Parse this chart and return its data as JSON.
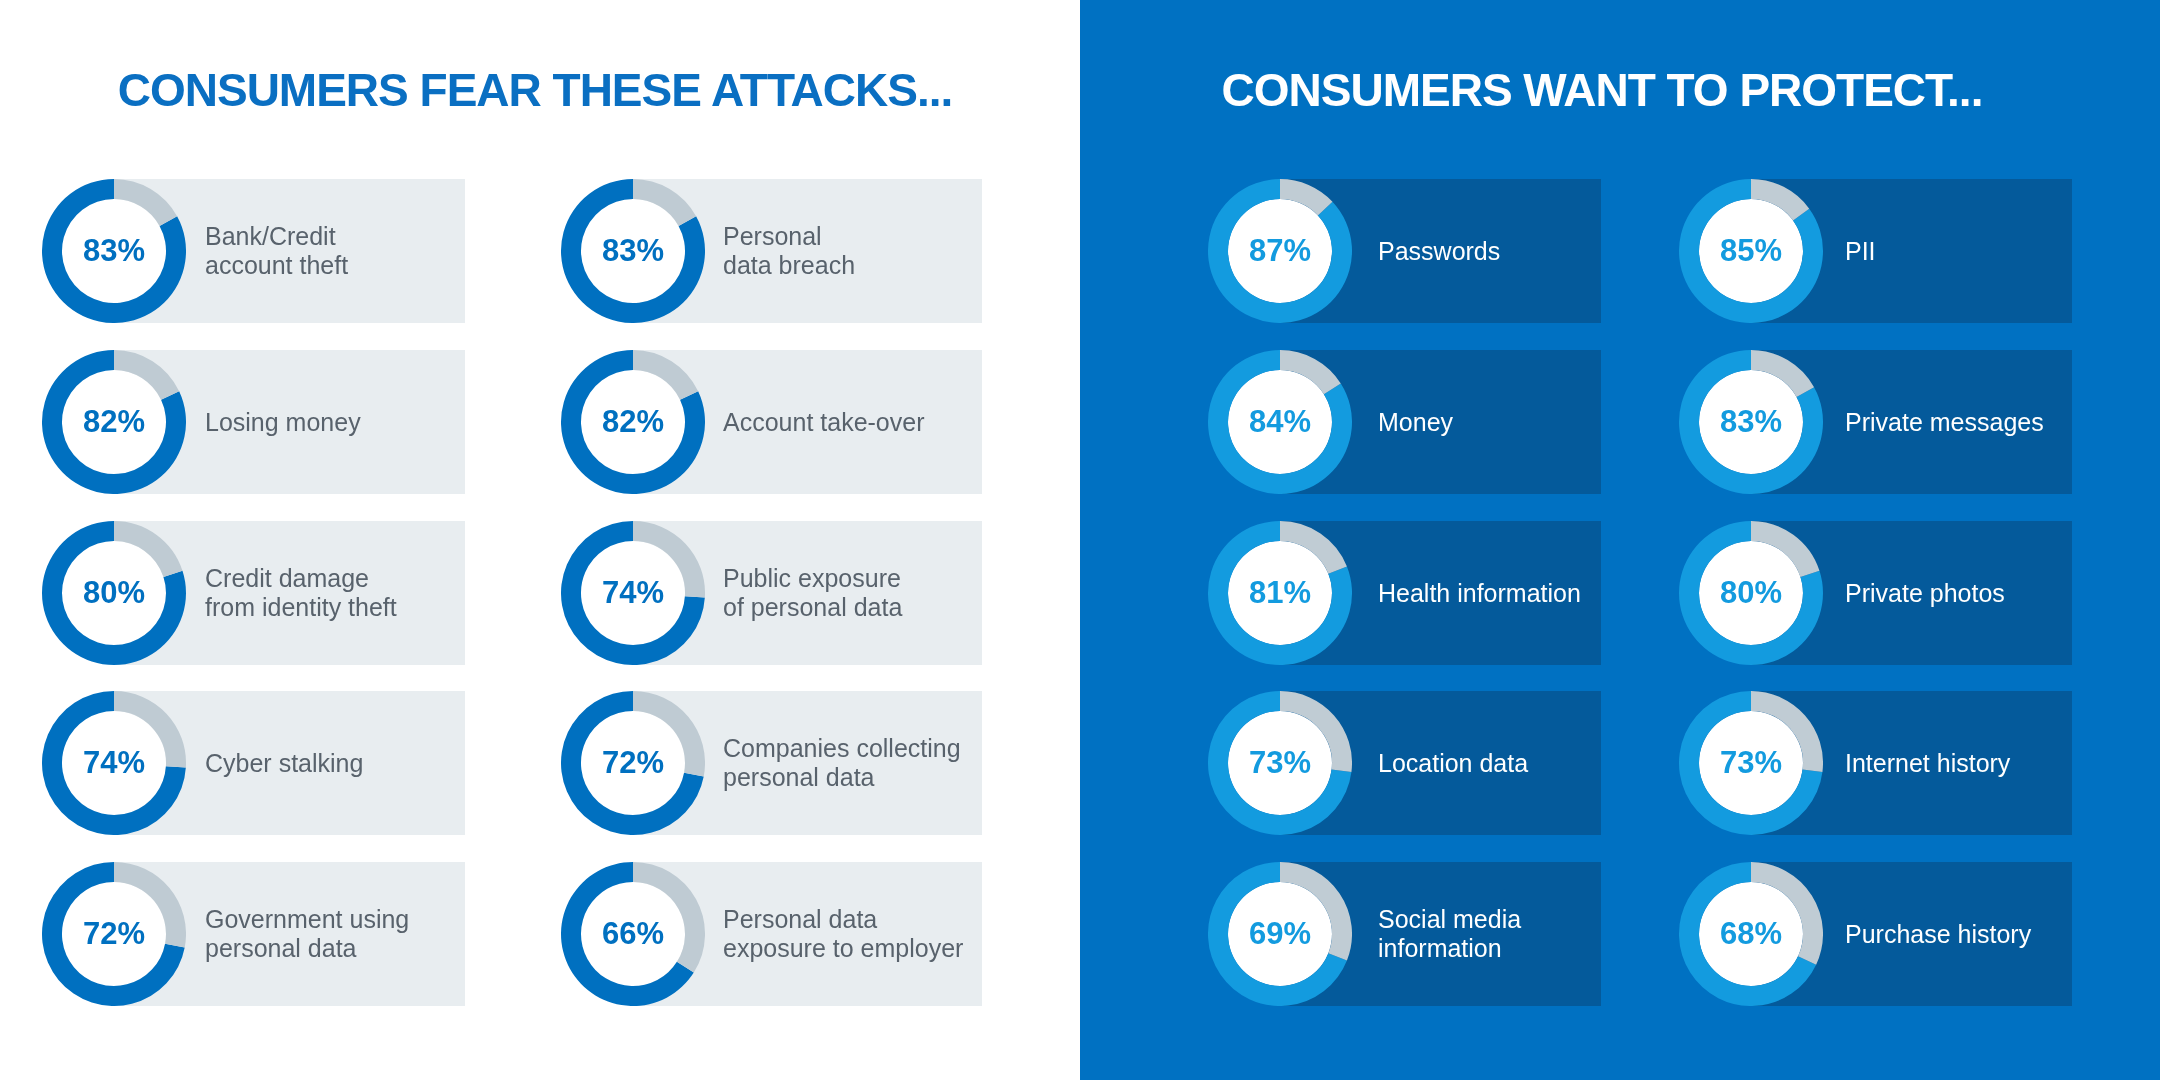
{
  "chart_data": [
    {
      "type": "other",
      "title": "CONSUMERS FEAR THESE ATTACKS..."
    },
    {
      "type": "donut",
      "title": "Bank/Credit\naccount theft",
      "categories": [
        null,
        null
      ],
      "values": [
        83,
        17
      ],
      "colors": [
        "#0070c0",
        "#bfcbd3"
      ],
      "value_labels": [
        "83%",
        null
      ]
    },
    {
      "type": "donut",
      "title": "Personal\ndata breach",
      "categories": [
        null,
        null
      ],
      "values": [
        83,
        17
      ],
      "colors": [
        "#0070c0",
        "#bfcbd3"
      ],
      "value_labels": [
        "83%",
        null
      ]
    },
    {
      "type": "donut",
      "title": "Losing money",
      "categories": [
        null,
        null
      ],
      "values": [
        82,
        18
      ],
      "colors": [
        "#0070c0",
        "#bfcbd3"
      ],
      "value_labels": [
        "82%",
        null
      ]
    },
    {
      "type": "donut",
      "title": "Account take-over",
      "categories": [
        null,
        null
      ],
      "values": [
        82,
        18
      ],
      "colors": [
        "#0070c0",
        "#bfcbd3"
      ],
      "value_labels": [
        "82%",
        null
      ]
    },
    {
      "type": "donut",
      "title": "Credit damage\nfrom identity theft",
      "categories": [
        null,
        null
      ],
      "values": [
        80,
        20
      ],
      "colors": [
        "#0070c0",
        "#bfcbd3"
      ],
      "value_labels": [
        "80%",
        null
      ]
    },
    {
      "type": "donut",
      "title": "Public exposure\nof personal data",
      "categories": [
        null,
        null
      ],
      "values": [
        74,
        26
      ],
      "colors": [
        "#0070c0",
        "#bfcbd3"
      ],
      "value_labels": [
        "74%",
        null
      ]
    },
    {
      "type": "donut",
      "title": "Cyber stalking",
      "categories": [
        null,
        null
      ],
      "values": [
        74,
        26
      ],
      "colors": [
        "#0070c0",
        "#bfcbd3"
      ],
      "value_labels": [
        "74%",
        null
      ]
    },
    {
      "type": "donut",
      "title": "Companies collecting\npersonal data",
      "categories": [
        null,
        null
      ],
      "values": [
        72,
        28
      ],
      "colors": [
        "#0070c0",
        "#bfcbd3"
      ],
      "value_labels": [
        "72%",
        null
      ]
    },
    {
      "type": "donut",
      "title": "Government using\npersonal data",
      "categories": [
        null,
        null
      ],
      "values": [
        72,
        28
      ],
      "colors": [
        "#0070c0",
        "#bfcbd3"
      ],
      "value_labels": [
        "72%",
        null
      ]
    },
    {
      "type": "donut",
      "title": "Personal data\nexposure to employer",
      "categories": [
        null,
        null
      ],
      "values": [
        66,
        34
      ],
      "colors": [
        "#0070c0",
        "#bfcbd3"
      ],
      "value_labels": [
        "66%",
        null
      ]
    },
    {
      "type": "other",
      "title": "CONSUMERS WANT TO PROTECT..."
    },
    {
      "type": "donut",
      "title": "Passwords",
      "categories": [
        null,
        null
      ],
      "values": [
        87,
        13
      ],
      "colors": [
        "#139bdf",
        "#c0ccd4"
      ],
      "value_labels": [
        "87%",
        null
      ]
    },
    {
      "type": "donut",
      "title": "PII",
      "categories": [
        null,
        null
      ],
      "values": [
        85,
        15
      ],
      "colors": [
        "#139bdf",
        "#c0ccd4"
      ],
      "value_labels": [
        "85%",
        null
      ]
    },
    {
      "type": "donut",
      "title": "Money",
      "categories": [
        null,
        null
      ],
      "values": [
        84,
        16
      ],
      "colors": [
        "#139bdf",
        "#c0ccd4"
      ],
      "value_labels": [
        "84%",
        null
      ]
    },
    {
      "type": "donut",
      "title": "Private messages",
      "categories": [
        null,
        null
      ],
      "values": [
        83,
        17
      ],
      "colors": [
        "#139bdf",
        "#c0ccd4"
      ],
      "value_labels": [
        "83%",
        null
      ]
    },
    {
      "type": "donut",
      "title": "Health information",
      "categories": [
        null,
        null
      ],
      "values": [
        81,
        19
      ],
      "colors": [
        "#139bdf",
        "#c0ccd4"
      ],
      "value_labels": [
        "81%",
        null
      ]
    },
    {
      "type": "donut",
      "title": "Private photos",
      "categories": [
        null,
        null
      ],
      "values": [
        80,
        20
      ],
      "colors": [
        "#139bdf",
        "#c0ccd4"
      ],
      "value_labels": [
        "80%",
        null
      ]
    },
    {
      "type": "donut",
      "title": "Location data",
      "categories": [
        null,
        null
      ],
      "values": [
        73,
        27
      ],
      "colors": [
        "#139bdf",
        "#c0ccd4"
      ],
      "value_labels": [
        "73%",
        null
      ]
    },
    {
      "type": "donut",
      "title": "Internet history",
      "categories": [
        null,
        null
      ],
      "values": [
        73,
        27
      ],
      "colors": [
        "#139bdf",
        "#c0ccd4"
      ],
      "value_labels": [
        "73%",
        null
      ]
    },
    {
      "type": "donut",
      "title": "Social media\ninformation",
      "categories": [
        null,
        null
      ],
      "values": [
        69,
        31
      ],
      "colors": [
        "#139bdf",
        "#c0ccd4"
      ],
      "value_labels": [
        "69%",
        null
      ]
    },
    {
      "type": "donut",
      "title": "Purchase history",
      "categories": [
        null,
        null
      ],
      "values": [
        68,
        32
      ],
      "colors": [
        "#139bdf",
        "#c0ccd4"
      ],
      "value_labels": [
        "68%",
        null
      ]
    }
  ]
}
